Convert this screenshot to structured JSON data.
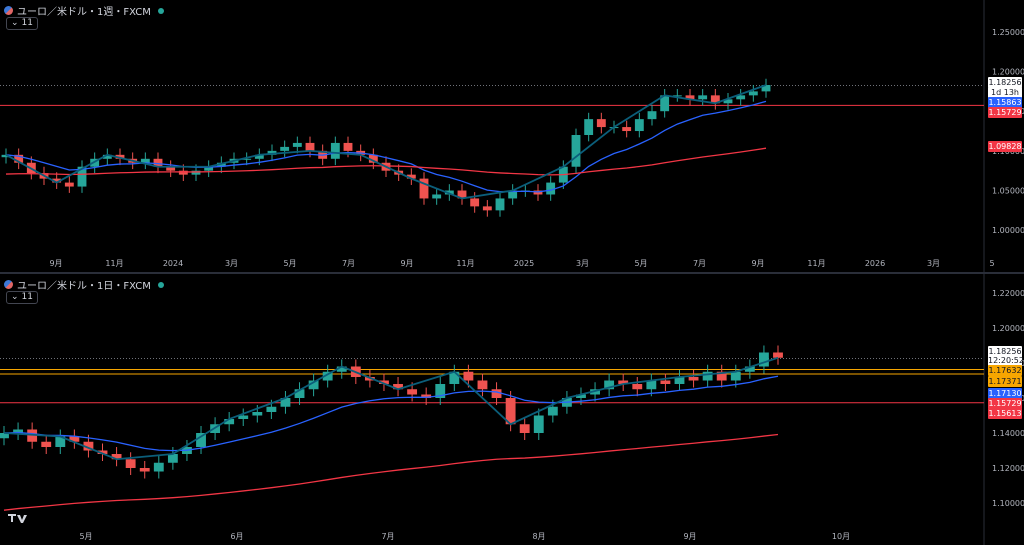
{
  "top_pane": {
    "title": "ユーロ／米ドル・1週・FXCM",
    "indicator_badge": "11",
    "price_axis_ticks": [
      "1.25000",
      "1.20000",
      "1.15000",
      "1.10000",
      "1.05000",
      "1.00000"
    ],
    "time_axis_ticks": [
      "9月",
      "11月",
      "2024",
      "3月",
      "5月",
      "7月",
      "9月",
      "11月",
      "2025",
      "3月",
      "5月",
      "7月",
      "9月",
      "11月",
      "2026",
      "3月",
      "5"
    ],
    "labels": [
      {
        "text": "1.18256",
        "bg": "#ffffff",
        "fg": "#131722"
      },
      {
        "text": "1d 13h",
        "bg": "#ffffff",
        "fg": "#131722"
      },
      {
        "text": "1.15863",
        "bg": "#2962ff",
        "fg": "#ffffff"
      },
      {
        "text": "1.15729",
        "bg": "#f23645",
        "fg": "#ffffff"
      },
      {
        "text": "1.09828",
        "bg": "#f23645",
        "fg": "#ffffff"
      }
    ]
  },
  "bottom_pane": {
    "title": "ユーロ／米ドル・1日・FXCM",
    "indicator_badge": "11",
    "price_axis_ticks": [
      "1.22000",
      "1.20000",
      "1.18000",
      "1.16000",
      "1.14000",
      "1.12000",
      "1.10000"
    ],
    "time_axis_ticks": [
      "5月",
      "6月",
      "7月",
      "8月",
      "9月",
      "10月"
    ],
    "labels": [
      {
        "text": "1.18256",
        "bg": "#ffffff",
        "fg": "#131722"
      },
      {
        "text": "12:20:52",
        "bg": "#ffffff",
        "fg": "#131722"
      },
      {
        "text": "1.17632",
        "bg": "#f7a600",
        "fg": "#131722"
      },
      {
        "text": "1.17371",
        "bg": "#f7a600",
        "fg": "#131722"
      },
      {
        "text": "1.17130",
        "bg": "#2962ff",
        "fg": "#ffffff"
      },
      {
        "text": "1.15729",
        "bg": "#f23645",
        "fg": "#ffffff"
      },
      {
        "text": "1.15613",
        "bg": "#f23645",
        "fg": "#ffffff"
      }
    ]
  },
  "colors": {
    "up": "#26a69a",
    "down": "#ef5350",
    "ma_fast": "#2962ff",
    "ma_slow": "#f23645",
    "zigzag": "#0b5e7a",
    "hline_red": "#f23645",
    "hline_orange": "#f7a600"
  },
  "chart_data": [
    {
      "type": "candlestick",
      "title": "ユーロ／米ドル・1週・FXCM",
      "ylim": [
        0.975,
        1.265
      ],
      "last_price": 1.18256,
      "horizontal_lines": [
        1.15729
      ],
      "ma_fast_last": 1.15863,
      "ma_slow_last": 1.09828,
      "close_path": [
        1.095,
        1.085,
        1.072,
        1.065,
        1.06,
        1.055,
        1.08,
        1.09,
        1.095,
        1.09,
        1.085,
        1.09,
        1.08,
        1.075,
        1.07,
        1.075,
        1.08,
        1.085,
        1.09,
        1.09,
        1.095,
        1.1,
        1.105,
        1.11,
        1.1,
        1.09,
        1.11,
        1.1,
        1.095,
        1.085,
        1.075,
        1.07,
        1.065,
        1.04,
        1.045,
        1.05,
        1.04,
        1.03,
        1.025,
        1.04,
        1.05,
        1.05,
        1.045,
        1.06,
        1.08,
        1.12,
        1.14,
        1.13,
        1.13,
        1.125,
        1.14,
        1.15,
        1.17,
        1.17,
        1.165,
        1.17,
        1.16,
        1.165,
        1.17,
        1.175,
        1.183
      ]
    },
    {
      "type": "candlestick",
      "title": "ユーロ／米ドル・1日・FXCM",
      "ylim": [
        1.088,
        1.224
      ],
      "last_price": 1.18256,
      "horizontal_lines": [
        1.17632,
        1.17371,
        1.15729
      ],
      "ma_fast_last": 1.1713,
      "ma_slow_last": 1.15613,
      "close_path": [
        1.14,
        1.142,
        1.135,
        1.132,
        1.138,
        1.135,
        1.13,
        1.128,
        1.125,
        1.12,
        1.118,
        1.123,
        1.128,
        1.132,
        1.14,
        1.145,
        1.148,
        1.15,
        1.152,
        1.155,
        1.16,
        1.165,
        1.17,
        1.175,
        1.178,
        1.172,
        1.17,
        1.168,
        1.165,
        1.162,
        1.16,
        1.168,
        1.175,
        1.17,
        1.165,
        1.16,
        1.145,
        1.14,
        1.15,
        1.155,
        1.16,
        1.162,
        1.165,
        1.17,
        1.168,
        1.165,
        1.17,
        1.168,
        1.172,
        1.17,
        1.175,
        1.17,
        1.175,
        1.178,
        1.186,
        1.183
      ]
    }
  ]
}
